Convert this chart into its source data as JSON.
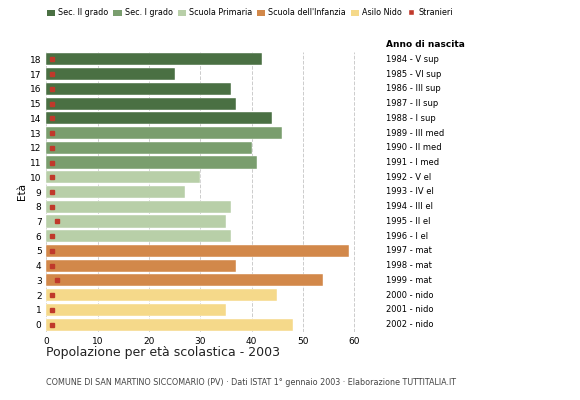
{
  "ages": [
    18,
    17,
    16,
    15,
    14,
    13,
    12,
    11,
    10,
    9,
    8,
    7,
    6,
    5,
    4,
    3,
    2,
    1,
    0
  ],
  "values": [
    42,
    25,
    36,
    37,
    44,
    46,
    40,
    41,
    30,
    27,
    36,
    35,
    36,
    59,
    37,
    54,
    45,
    35,
    48
  ],
  "stranieri_x": [
    1,
    1,
    1,
    1,
    1,
    1,
    1,
    1,
    1,
    1,
    1,
    2,
    1,
    1,
    1,
    2,
    1,
    1,
    1
  ],
  "bar_colors": [
    "#4a7043",
    "#4a7043",
    "#4a7043",
    "#4a7043",
    "#4a7043",
    "#7a9e6e",
    "#7a9e6e",
    "#7a9e6e",
    "#b8cfa8",
    "#b8cfa8",
    "#b8cfa8",
    "#b8cfa8",
    "#b8cfa8",
    "#d2884a",
    "#d2884a",
    "#d2884a",
    "#f5d98a",
    "#f5d98a",
    "#f5d98a"
  ],
  "right_labels": [
    "1984 - V sup",
    "1985 - VI sup",
    "1986 - III sup",
    "1987 - II sup",
    "1988 - I sup",
    "1989 - III med",
    "1990 - II med",
    "1991 - I med",
    "1992 - V el",
    "1993 - IV el",
    "1994 - III el",
    "1995 - II el",
    "1996 - I el",
    "1997 - mat",
    "1998 - mat",
    "1999 - mat",
    "2000 - nido",
    "2001 - nido",
    "2002 - nido"
  ],
  "legend_labels": [
    "Sec. II grado",
    "Sec. I grado",
    "Scuola Primaria",
    "Scuola dell'Infanzia",
    "Asilo Nido",
    "Stranieri"
  ],
  "legend_colors": [
    "#4a7043",
    "#7a9e6e",
    "#b8cfa8",
    "#d2884a",
    "#f5d98a",
    "#c0392b"
  ],
  "stranieri_color": "#c0392b",
  "ylabel": "Età",
  "xlim": [
    0,
    65
  ],
  "title": "Popolazione per età scolastica - 2003",
  "subtitle": "COMUNE DI SAN MARTINO SICCOMARIO (PV) · Dati ISTAT 1° gennaio 2003 · Elaborazione TUTTITALIA.IT",
  "right_label_title": "Anno di nascita",
  "bg_color": "#ffffff",
  "grid_color": "#cccccc",
  "xticks": [
    0,
    10,
    20,
    30,
    40,
    50,
    60
  ]
}
